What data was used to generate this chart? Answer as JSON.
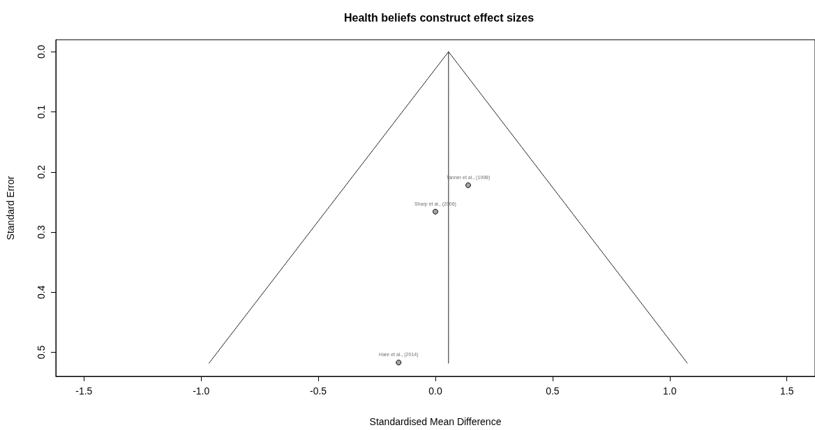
{
  "chart_data": {
    "type": "scatter",
    "title": "Health beliefs construct effect sizes",
    "xlabel": "Standardised Mean Difference",
    "ylabel": "Standard Error",
    "xlim": [
      -1.62,
      1.62
    ],
    "xticks": [
      {
        "value": -1.5,
        "label": "-1.5"
      },
      {
        "value": -1,
        "label": "-1.0"
      },
      {
        "value": -0.5,
        "label": "-0.5"
      },
      {
        "value": 0,
        "label": "0.0"
      },
      {
        "value": 0.5,
        "label": "0.5"
      },
      {
        "value": 1,
        "label": "1.0"
      },
      {
        "value": 1.5,
        "label": "1.5"
      }
    ],
    "ylim": [
      0.54,
      -0.02
    ],
    "yticks": [
      {
        "value": 0,
        "label": "0.0"
      },
      0.1,
      0.2,
      0.3,
      0.4,
      0.5
    ],
    "grid": false,
    "line_style": "dotted",
    "marker": "circle",
    "series": [
      {
        "type": "line",
        "color": "#000000",
        "marker": "none",
        "x": [
          -0.966,
          0.056,
          1.075
        ],
        "values": [
          0.518,
          0,
          0.518
        ]
      },
      {
        "type": "line",
        "color": "#000000",
        "marker": "none",
        "x": [
          0.056,
          0.056
        ],
        "values": [
          0,
          0.518
        ]
      },
      {
        "color": "#a6a6a6",
        "x": [
          0.14,
          0.0,
          -0.157
        ],
        "values": [
          0.222,
          0.266,
          0.517
        ]
      }
    ],
    "annotations": [
      {
        "text": "Tanner et al., (1998)",
        "x": 0.14,
        "y": 0.222
      },
      {
        "text": "Sharp et al., (2006)",
        "x": 0.0,
        "y": 0.266
      },
      {
        "text": "Hare et al., (2014)",
        "x": -0.157,
        "y": 0.517
      }
    ]
  }
}
